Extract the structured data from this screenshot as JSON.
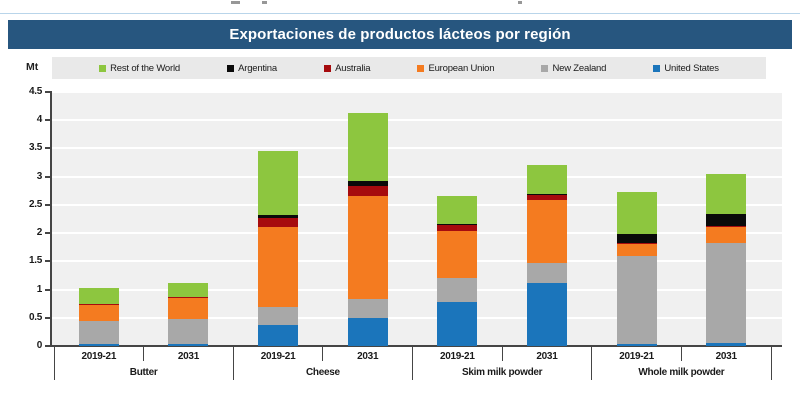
{
  "header": {
    "title": "Exportaciones de productos lácteos por región"
  },
  "chart_data": {
    "type": "bar",
    "stacked": true,
    "title": "Exportaciones de productos lácteos por región",
    "unit": "Mt",
    "ylabel": "Mt",
    "ylim": [
      0,
      4.5
    ],
    "ytick_step": 0.5,
    "yticks": [
      0,
      0.5,
      1,
      1.5,
      2,
      2.5,
      3,
      3.5,
      4,
      4.5
    ],
    "grid": true,
    "legend_position": "top",
    "groups": [
      "Butter",
      "Cheese",
      "Skim milk powder",
      "Whole milk powder"
    ],
    "periods": [
      "2019-21",
      "2031"
    ],
    "categories": [
      "Butter 2019-21",
      "Butter 2031",
      "Cheese 2019-21",
      "Cheese 2031",
      "Skim milk powder 2019-21",
      "Skim milk powder 2031",
      "Whole milk powder 2019-21",
      "Whole milk powder 2031"
    ],
    "series": [
      {
        "name": "United States",
        "color": "#1b75bb",
        "values": [
          0.03,
          0.04,
          0.37,
          0.49,
          0.78,
          1.11,
          0.03,
          0.05
        ]
      },
      {
        "name": "New Zealand",
        "color": "#a8a8a8",
        "values": [
          0.41,
          0.44,
          0.32,
          0.35,
          0.42,
          0.36,
          1.56,
          1.78
        ]
      },
      {
        "name": "European Union",
        "color": "#f47b20",
        "values": [
          0.28,
          0.37,
          1.41,
          1.81,
          0.84,
          1.12,
          0.21,
          0.27
        ]
      },
      {
        "name": "Australia",
        "color": "#a60b0e",
        "values": [
          0.02,
          0.02,
          0.16,
          0.18,
          0.1,
          0.08,
          0.03,
          0.03
        ]
      },
      {
        "name": "Argentina",
        "color": "#0a0a0a",
        "values": [
          0.0,
          0.0,
          0.06,
          0.09,
          0.02,
          0.02,
          0.16,
          0.2
        ]
      },
      {
        "name": "Rest of the World",
        "color": "#8dc63f",
        "values": [
          0.29,
          0.25,
          1.13,
          1.21,
          0.5,
          0.51,
          0.74,
          0.71
        ]
      }
    ],
    "totals": [
      1.03,
      1.12,
      3.45,
      4.13,
      2.66,
      3.2,
      2.73,
      3.04
    ],
    "legend_order": [
      "Rest of the World",
      "Argentina",
      "Australia",
      "European Union",
      "New Zealand",
      "United States"
    ]
  },
  "colors": {
    "title_bar_bg": "#27567f",
    "title_text": "#ffffff",
    "legend_bg": "#e9e9e9",
    "plot_bg": "#f0f0f0",
    "gridline": "#ffffff",
    "axis": "#454545"
  }
}
